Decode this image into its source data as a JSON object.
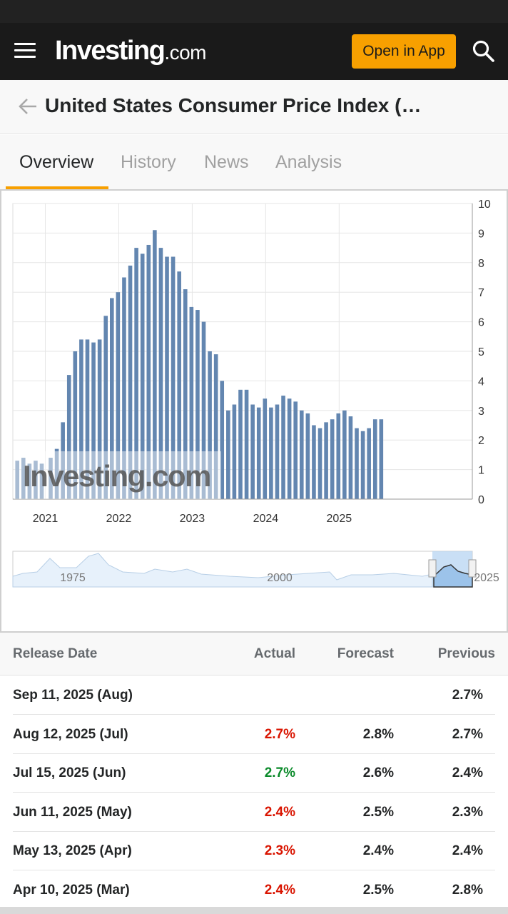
{
  "header": {
    "logo_main": "Investing",
    "logo_suffix": ".com",
    "open_app_label": "Open in App",
    "icons": {
      "menu": "hamburger-menu-icon",
      "search": "search-icon",
      "back": "arrow-left-icon"
    }
  },
  "title": "United States Consumer Price Index (…",
  "tabs": [
    {
      "label": "Overview",
      "active": true
    },
    {
      "label": "History",
      "active": false
    },
    {
      "label": "News",
      "active": false
    },
    {
      "label": "Analysis",
      "active": false
    }
  ],
  "colors": {
    "accent": "#f8a000",
    "bar": "#6386b0",
    "negative": "#d91400",
    "positive": "#0a8a2a",
    "topbar": "#1a1a1a"
  },
  "chart_data": {
    "type": "bar",
    "ylim": [
      0,
      10
    ],
    "y_ticks": [
      "0",
      "1",
      "2",
      "3",
      "4",
      "5",
      "6",
      "7",
      "8",
      "9",
      "10"
    ],
    "x_ticks": [
      "2021",
      "2022",
      "2023",
      "2024",
      "2025"
    ],
    "grid": true,
    "watermark": "Investing.com",
    "categories": [
      "2021-01",
      "2021-02",
      "2021-03",
      "2021-04",
      "2021-05",
      "2021-06",
      "2021-07",
      "2021-08",
      "2021-09",
      "2021-10",
      "2021-11",
      "2021-12",
      "2022-01",
      "2022-02",
      "2022-03",
      "2022-04",
      "2022-05",
      "2022-06",
      "2022-07",
      "2022-08",
      "2022-09",
      "2022-10",
      "2022-11",
      "2022-12",
      "2023-01",
      "2023-02",
      "2023-03",
      "2023-04",
      "2023-05",
      "2023-06",
      "2023-07",
      "2023-08",
      "2023-09",
      "2023-10",
      "2023-11",
      "2023-12",
      "2024-01",
      "2024-02",
      "2024-03",
      "2024-04",
      "2024-05",
      "2024-06",
      "2024-07",
      "2024-08",
      "2024-09",
      "2024-10",
      "2024-11",
      "2024-12",
      "2025-01",
      "2025-02",
      "2025-03",
      "2025-04",
      "2025-05",
      "2025-06",
      "2025-07"
    ],
    "values": [
      1.4,
      1.7,
      2.6,
      4.2,
      5.0,
      5.4,
      5.4,
      5.3,
      5.4,
      6.2,
      6.8,
      7.0,
      7.5,
      7.9,
      8.5,
      8.3,
      8.6,
      9.1,
      8.5,
      8.2,
      8.2,
      7.7,
      7.1,
      6.5,
      6.4,
      6.0,
      5.0,
      4.9,
      4.0,
      3.0,
      3.2,
      3.7,
      3.7,
      3.2,
      3.1,
      3.4,
      3.1,
      3.2,
      3.5,
      3.4,
      3.3,
      3.0,
      2.9,
      2.5,
      2.4,
      2.6,
      2.7,
      2.9,
      3.0,
      2.8,
      2.4,
      2.3,
      2.4,
      2.7,
      2.7
    ],
    "overview_ticks": [
      "1975",
      "2000",
      "2025"
    ]
  },
  "table": {
    "headers": {
      "date": "Release Date",
      "actual": "Actual",
      "forecast": "Forecast",
      "previous": "Previous"
    },
    "rows": [
      {
        "date": "Sep 11, 2025 (Aug)",
        "actual": "",
        "actual_status": "",
        "forecast": "",
        "previous": "2.7%"
      },
      {
        "date": "Aug 12, 2025 (Jul)",
        "actual": "2.7%",
        "actual_status": "red",
        "forecast": "2.8%",
        "previous": "2.7%"
      },
      {
        "date": "Jul 15, 2025 (Jun)",
        "actual": "2.7%",
        "actual_status": "green",
        "forecast": "2.6%",
        "previous": "2.4%"
      },
      {
        "date": "Jun 11, 2025 (May)",
        "actual": "2.4%",
        "actual_status": "red",
        "forecast": "2.5%",
        "previous": "2.3%"
      },
      {
        "date": "May 13, 2025 (Apr)",
        "actual": "2.3%",
        "actual_status": "red",
        "forecast": "2.4%",
        "previous": "2.4%"
      },
      {
        "date": "Apr 10, 2025 (Mar)",
        "actual": "2.4%",
        "actual_status": "red",
        "forecast": "2.5%",
        "previous": "2.8%"
      }
    ]
  }
}
